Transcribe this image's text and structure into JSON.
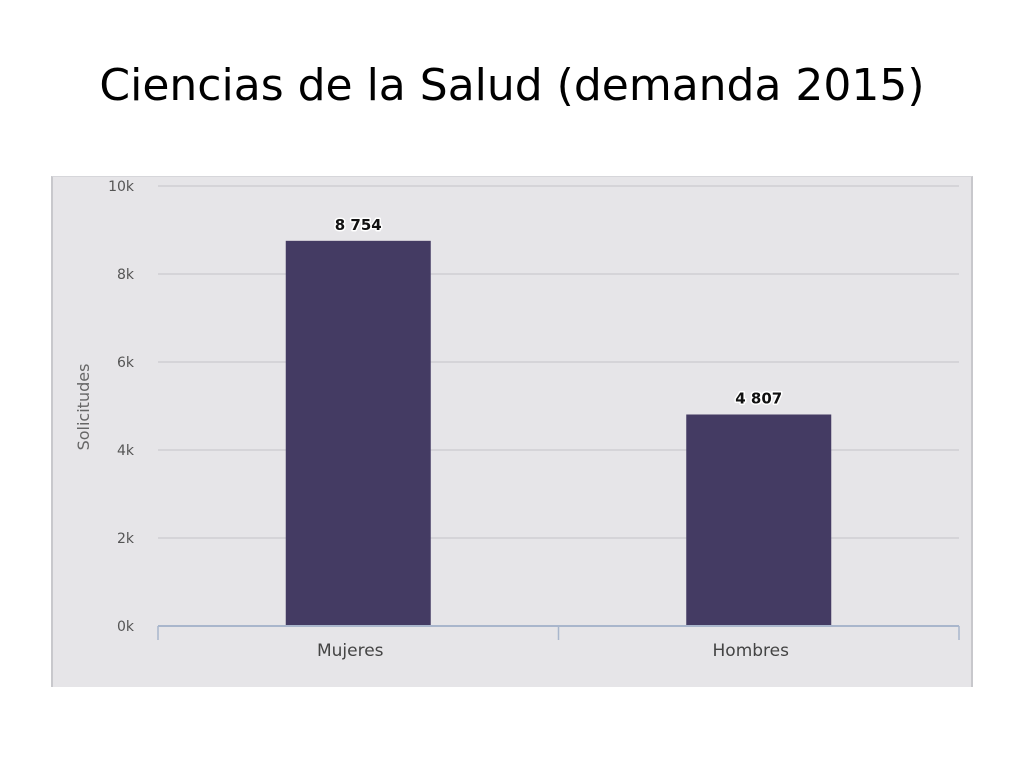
{
  "slide": {
    "title": "Ciencias de la Salud (demanda 2015)"
  },
  "chart_data": {
    "type": "bar",
    "categories": [
      "Mujeres",
      "Hombres"
    ],
    "values": [
      8754,
      4807
    ],
    "value_labels": [
      "8 754",
      "4 807"
    ],
    "title": "",
    "xlabel": "",
    "ylabel": "Solicitudes",
    "ylim": [
      0,
      10000
    ],
    "y_ticks": [
      0,
      2000,
      4000,
      6000,
      8000,
      10000
    ],
    "y_tick_labels": [
      "0k",
      "2k",
      "4k",
      "6k",
      "8k",
      "10k"
    ],
    "grid": true,
    "legend": "none",
    "bar_color": "#443b63",
    "plot_background": "#e6e5e8",
    "gridline_color": "#cfcfd3",
    "axis_color": "#a9b6cc"
  }
}
